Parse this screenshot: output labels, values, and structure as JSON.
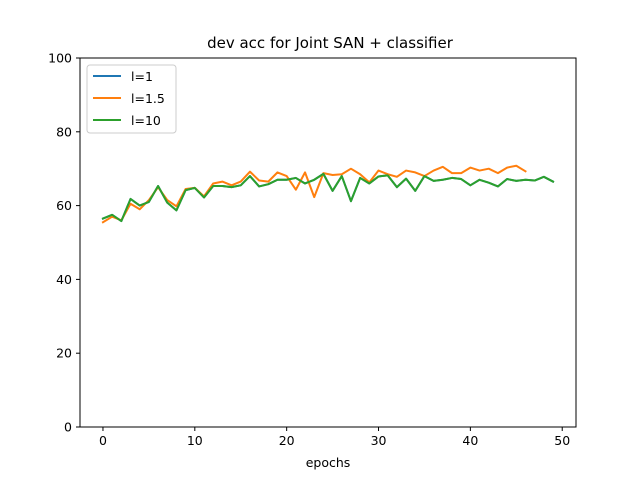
{
  "chart_data": {
    "type": "line",
    "title": "dev acc for Joint SAN + classifier",
    "xlabel": "epochs",
    "ylabel": "",
    "xlim": [
      -2.5,
      51.5
    ],
    "ylim": [
      0,
      100
    ],
    "xticks": [
      0,
      10,
      20,
      30,
      40,
      50
    ],
    "yticks": [
      0,
      20,
      40,
      60,
      80,
      100
    ],
    "grid": false,
    "legend_position": "top-left",
    "series": [
      {
        "name": "l=1",
        "color": "#1f77b4",
        "x": [
          0,
          1,
          2,
          3,
          4,
          5,
          6,
          7,
          8,
          9,
          10,
          11,
          12,
          13,
          14,
          15,
          16,
          17,
          18,
          19,
          20,
          21,
          22,
          23,
          24,
          25,
          26,
          27,
          28,
          29,
          30,
          31,
          32,
          33,
          34,
          35,
          36,
          37,
          38,
          39,
          40,
          41,
          42,
          43,
          44,
          45,
          46,
          47,
          48,
          49
        ],
        "values": [
          56.5,
          57.5,
          55.8,
          61.8,
          60.0,
          61.0,
          65.3,
          60.8,
          58.7,
          64.2,
          64.8,
          62.2,
          65.3,
          65.3,
          65.0,
          65.5,
          68.0,
          65.2,
          65.8,
          67.0,
          67.0,
          67.5,
          66.0,
          67.0,
          68.6,
          64.0,
          68.0,
          61.2,
          67.5,
          66.0,
          67.9,
          68.2,
          65.0,
          67.3,
          64.0,
          68.0,
          66.7,
          67.0,
          67.5,
          67.2,
          65.5,
          67.0,
          66.2,
          65.2,
          67.2,
          66.7,
          67.0,
          66.8,
          67.8,
          66.5
        ]
      },
      {
        "name": "l=1.5",
        "color": "#ff7f0e",
        "x": [
          0,
          1,
          2,
          3,
          4,
          5,
          6,
          7,
          8,
          9,
          10,
          11,
          12,
          13,
          14,
          15,
          16,
          17,
          18,
          19,
          20,
          21,
          22,
          23,
          24,
          25,
          26,
          27,
          28,
          29,
          30,
          31,
          32,
          33,
          34,
          35,
          36,
          37,
          38,
          39,
          40,
          41,
          42,
          43,
          44,
          45,
          46
        ],
        "values": [
          55.5,
          57.0,
          56.0,
          60.5,
          59.0,
          61.5,
          65.0,
          61.5,
          59.8,
          64.5,
          64.8,
          62.5,
          66.0,
          66.5,
          65.5,
          66.5,
          69.2,
          66.8,
          66.5,
          69.0,
          68.0,
          64.3,
          69.0,
          62.3,
          68.8,
          68.3,
          68.5,
          70.0,
          68.5,
          66.3,
          69.5,
          68.5,
          67.8,
          69.5,
          69.0,
          68.0,
          69.5,
          70.5,
          68.8,
          68.8,
          70.3,
          69.5,
          70.0,
          68.8,
          70.3,
          70.8,
          69.3
        ]
      },
      {
        "name": "l=10",
        "color": "#2ca02c",
        "x": [
          0,
          1,
          2,
          3,
          4,
          5,
          6,
          7,
          8,
          9,
          10,
          11,
          12,
          13,
          14,
          15,
          16,
          17,
          18,
          19,
          20,
          21,
          22,
          23,
          24,
          25,
          26,
          27,
          28,
          29,
          30,
          31,
          32,
          33,
          34,
          35,
          36,
          37,
          38,
          39,
          40,
          41,
          42,
          43,
          44,
          45,
          46,
          47,
          48,
          49
        ],
        "values": [
          56.5,
          57.5,
          55.8,
          61.8,
          60.0,
          61.0,
          65.3,
          60.8,
          58.7,
          64.2,
          64.8,
          62.2,
          65.3,
          65.3,
          65.0,
          65.5,
          68.0,
          65.2,
          65.8,
          67.0,
          67.0,
          67.5,
          66.0,
          67.0,
          68.6,
          64.0,
          68.0,
          61.2,
          67.5,
          66.0,
          67.9,
          68.2,
          65.0,
          67.3,
          64.0,
          68.0,
          66.7,
          67.0,
          67.5,
          67.2,
          65.5,
          67.0,
          66.2,
          65.2,
          67.2,
          66.7,
          67.0,
          66.8,
          67.8,
          66.5
        ]
      }
    ]
  }
}
